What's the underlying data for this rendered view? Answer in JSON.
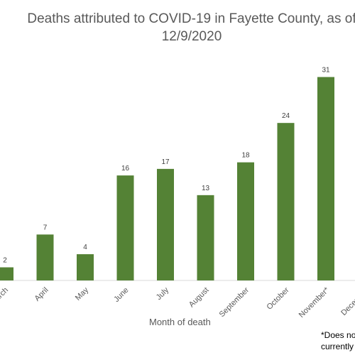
{
  "chart_data": {
    "type": "bar",
    "title": "Deaths attributed to COVID-19 in Fayette County, as of",
    "subtitle": "12/9/2020",
    "xlabel": "Month of death",
    "ylabel": "",
    "categories": [
      "March",
      "April",
      "May",
      "June",
      "July",
      "August",
      "September",
      "October",
      "November*",
      "December"
    ],
    "values": [
      2,
      7,
      4,
      16,
      17,
      13,
      18,
      24,
      31,
      null
    ],
    "data_labels": [
      "2",
      "7",
      "4",
      "16",
      "17",
      "13",
      "18",
      "24",
      "31",
      ""
    ],
    "ylim": [
      0,
      33
    ],
    "grid": false,
    "legend": "none",
    "bar_color": "#548235",
    "text_color": "#595959",
    "footnote_lines": [
      "*Does no",
      "currently be"
    ]
  }
}
